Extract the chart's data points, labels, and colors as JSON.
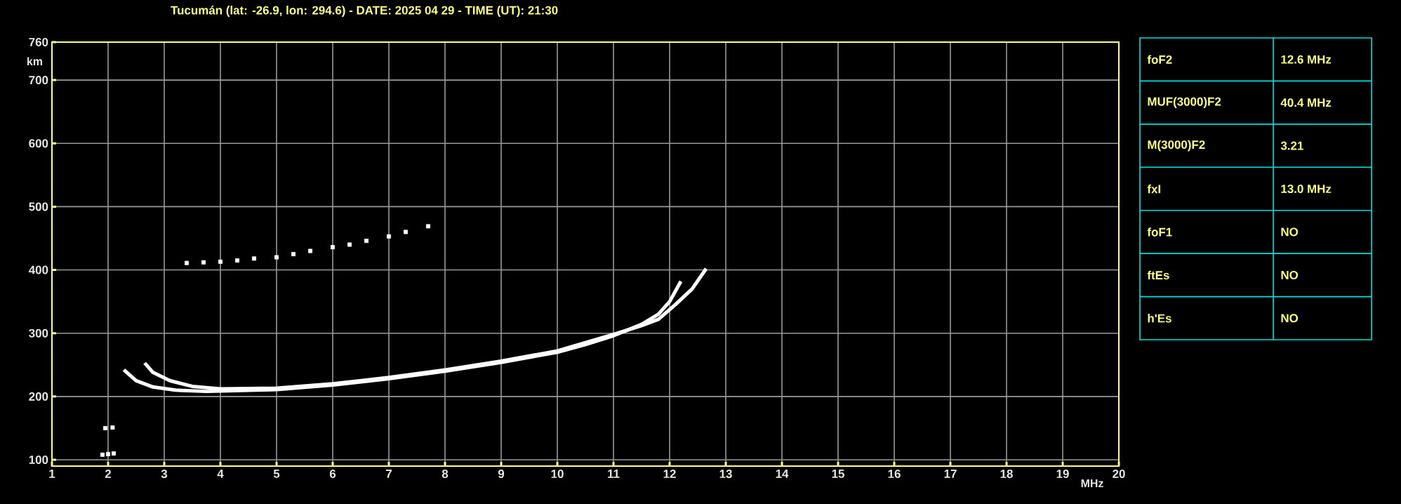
{
  "chart_data": {
    "type": "line",
    "title": "Tucumán (lat: -26.9, lon: 294.6) - DATE: 2025 04 29 - TIME (UT): 21:30",
    "xlabel": "MHz",
    "ylabel": "km",
    "xlim": [
      1,
      20
    ],
    "xticks": [
      1,
      2,
      3,
      4,
      5,
      6,
      7,
      8,
      9,
      10,
      11,
      12,
      13,
      14,
      15,
      16,
      17,
      18,
      19,
      20
    ],
    "ylim": [
      90,
      760
    ],
    "yticks": [
      100,
      200,
      300,
      400,
      500,
      600,
      700,
      760
    ],
    "grid": true,
    "series": [
      {
        "color": "#ffffff",
        "marker": "none",
        "x": [
          2.28,
          2.5,
          2.8,
          3.2,
          3.75,
          5,
          6,
          7,
          8,
          9,
          10,
          10.5,
          11,
          11.5,
          11.8,
          12.0,
          12.2
        ],
        "values": [
          242,
          225,
          215,
          210,
          208,
          211,
          218,
          228,
          240,
          254,
          270,
          282,
          296,
          314,
          330,
          350,
          382
        ]
      },
      {
        "color": "#ffffff",
        "marker": "none",
        "x": [
          2.65,
          2.8,
          3.1,
          3.5,
          4,
          5,
          6,
          7,
          8,
          9,
          10,
          11,
          11.5,
          11.8,
          12.1,
          12.4,
          12.65
        ],
        "values": [
          253,
          238,
          225,
          216,
          212,
          213,
          220,
          230,
          242,
          256,
          272,
          298,
          312,
          322,
          345,
          370,
          402
        ]
      },
      {
        "type": "scatter",
        "color": "#ffffff",
        "marker": "square",
        "x": [
          3.4,
          3.7,
          4.0,
          4.3,
          4.6,
          5.0,
          5.3,
          5.6,
          6.0,
          6.3,
          6.6,
          7.0,
          7.3,
          7.7
        ],
        "values": [
          411,
          412,
          413,
          415,
          418,
          420,
          425,
          430,
          436,
          440,
          446,
          453,
          460,
          469
        ]
      },
      {
        "type": "scatter",
        "color": "#ffffff",
        "marker": "square",
        "x": [
          1.95,
          2.08,
          1.9,
          2.0,
          2.1
        ],
        "values": [
          150,
          151,
          108,
          109,
          110
        ]
      }
    ],
    "annotations": [
      "foF2",
      "12.6 MHz",
      "MUF(3000)F2",
      "40.4 MHz",
      "M(3000)F2",
      "3.21",
      "fxI",
      "13.0 MHz",
      "foF1",
      "NO",
      "ftEs",
      "NO",
      "h'Es",
      "NO"
    ]
  }
}
